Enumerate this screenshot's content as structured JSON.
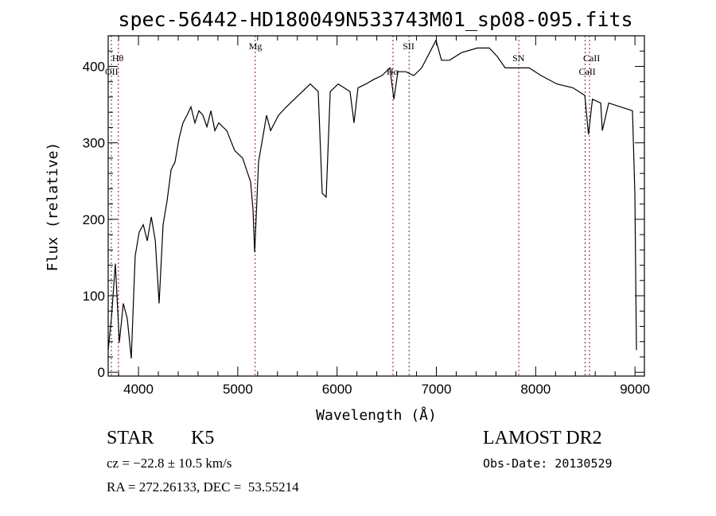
{
  "chart_data": {
    "type": "line",
    "title": "spec-56442-HD180049N533743M01_sp08-095.fits",
    "xlabel": "Wavelength (Å)",
    "ylabel": "Flux (relative)",
    "xlim": [
      3695,
      9095
    ],
    "ylim": [
      -5,
      440
    ],
    "xticks": [
      4000,
      5000,
      6000,
      7000,
      8000,
      9000
    ],
    "yticks": [
      0,
      100,
      200,
      300,
      400
    ],
    "grid": false,
    "series": [
      {
        "name": "spectrum",
        "x": [
          3695,
          3727,
          3767,
          3807,
          3847,
          3887,
          3927,
          3967,
          4007,
          4048,
          4088,
          4129,
          4169,
          4208,
          4248,
          4288,
          4329,
          4368,
          4409,
          4448,
          4488,
          4528,
          4568,
          4608,
          4649,
          4689,
          4729,
          4769,
          4809,
          4889,
          4969,
          5049,
          5129,
          5153,
          5170,
          5209,
          5250,
          5290,
          5330,
          5410,
          5490,
          5570,
          5650,
          5730,
          5810,
          5850,
          5890,
          5931,
          6011,
          6131,
          6171,
          6211,
          6291,
          6371,
          6452,
          6532,
          6572,
          6612,
          6692,
          6772,
          6852,
          6932,
          6996,
          7052,
          7132,
          7253,
          7413,
          7533,
          7613,
          7693,
          7814,
          7934,
          8054,
          8214,
          8375,
          8495,
          8532,
          8572,
          8655,
          8671,
          8735,
          8855,
          8975,
          8999,
          9015
        ],
        "y": [
          29,
          70,
          142,
          39,
          90,
          70,
          18,
          152,
          183,
          193,
          172,
          203,
          172,
          90,
          193,
          224,
          265,
          275,
          306,
          326,
          336,
          347,
          326,
          342,
          336,
          321,
          342,
          316,
          326,
          316,
          290,
          280,
          249,
          213,
          157,
          275,
          306,
          336,
          316,
          336,
          347,
          357,
          367,
          377,
          367,
          234,
          229,
          367,
          377,
          367,
          326,
          372,
          377,
          383,
          388,
          398,
          357,
          393,
          393,
          388,
          398,
          418,
          434,
          408,
          408,
          418,
          424,
          424,
          413,
          398,
          398,
          398,
          388,
          377,
          372,
          362,
          311,
          357,
          352,
          316,
          352,
          347,
          342,
          234,
          29
        ]
      }
    ],
    "annotations": [
      {
        "label": "OII",
        "wavelength": 3727,
        "row": "low"
      },
      {
        "label": "Hθ",
        "wavelength": 3798,
        "row": "mid"
      },
      {
        "label": "Mg",
        "wavelength": 5175,
        "row": "top"
      },
      {
        "label": "Hα",
        "wavelength": 6563,
        "row": "low"
      },
      {
        "label": "SII",
        "wavelength": 6725,
        "row": "top"
      },
      {
        "label": "SN",
        "wavelength": 7830,
        "row": "mid"
      },
      {
        "label": "CaII",
        "wavelength": 8498,
        "row": "low"
      },
      {
        "label": "CaII",
        "wavelength": 8542,
        "row": "mid"
      }
    ]
  },
  "info": {
    "class": "STAR",
    "subclass": "K5",
    "survey": "LAMOST DR2",
    "cz": "cz = −22.8 ± 10.5 km/s",
    "obs_date": "Obs-Date: 20130529",
    "coords": "RA = 272.26133, DEC =  53.55214"
  },
  "colors": {
    "spectrum": "#000000",
    "line_marker": "#8b1a1a"
  }
}
